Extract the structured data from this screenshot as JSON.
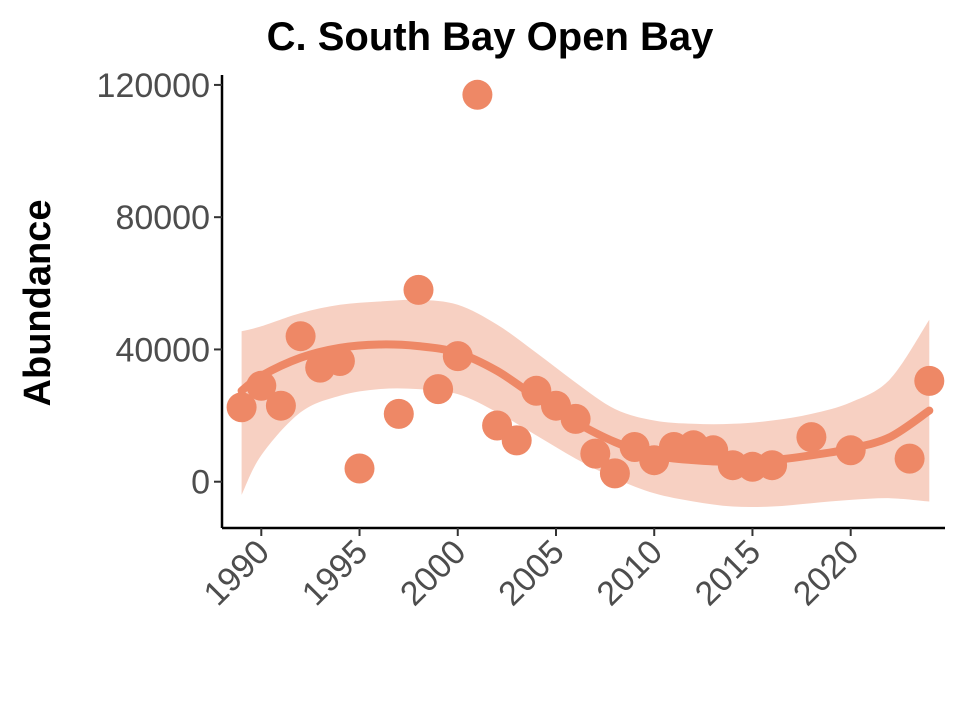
{
  "chart_data": {
    "type": "scatter",
    "title": "C. South Bay Open Bay",
    "xlabel": "",
    "ylabel": "Abundance",
    "xlim": [
      1988,
      2024.8
    ],
    "ylim": [
      -14000,
      123000
    ],
    "x_ticks": [
      1990,
      1995,
      2000,
      2005,
      2010,
      2015,
      2020
    ],
    "x_tick_labels": [
      "1990",
      "1995",
      "2000",
      "2005",
      "2010",
      "2015",
      "2020"
    ],
    "y_ticks": [
      0,
      40000,
      80000,
      120000
    ],
    "y_tick_labels": [
      "0",
      "40000",
      "80000",
      "120000"
    ],
    "grid": false,
    "colors": {
      "points": "#ee8866",
      "trend": "#ee8866",
      "band": "#f5c4b3"
    },
    "points": [
      {
        "x": 1989,
        "y": 22500
      },
      {
        "x": 1990,
        "y": 29000
      },
      {
        "x": 1991,
        "y": 23000
      },
      {
        "x": 1992,
        "y": 44000
      },
      {
        "x": 1993,
        "y": 34500
      },
      {
        "x": 1994,
        "y": 36500
      },
      {
        "x": 1995,
        "y": 4000
      },
      {
        "x": 1997,
        "y": 20500
      },
      {
        "x": 1998,
        "y": 58000
      },
      {
        "x": 1999,
        "y": 28000
      },
      {
        "x": 2000,
        "y": 38000
      },
      {
        "x": 2001,
        "y": 117000
      },
      {
        "x": 2002,
        "y": 17000
      },
      {
        "x": 2003,
        "y": 12500
      },
      {
        "x": 2004,
        "y": 27500
      },
      {
        "x": 2005,
        "y": 23000
      },
      {
        "x": 2006,
        "y": 19000
      },
      {
        "x": 2007,
        "y": 8500
      },
      {
        "x": 2008,
        "y": 2500
      },
      {
        "x": 2009,
        "y": 10500
      },
      {
        "x": 2010,
        "y": 6500
      },
      {
        "x": 2011,
        "y": 10500
      },
      {
        "x": 2012,
        "y": 11000
      },
      {
        "x": 2013,
        "y": 9500
      },
      {
        "x": 2014,
        "y": 5000
      },
      {
        "x": 2015,
        "y": 4500
      },
      {
        "x": 2016,
        "y": 5000
      },
      {
        "x": 2018,
        "y": 13500
      },
      {
        "x": 2020,
        "y": 9500
      },
      {
        "x": 2023,
        "y": 7000
      },
      {
        "x": 2024,
        "y": 30500
      }
    ],
    "trend": {
      "x": [
        1989,
        1990,
        1992,
        1994,
        1996,
        1998,
        2000,
        2002,
        2004,
        2006,
        2008,
        2010,
        2012,
        2014,
        2016,
        2018,
        2020,
        2022,
        2024
      ],
      "y": [
        27500,
        32000,
        37500,
        40500,
        41500,
        41000,
        39000,
        33500,
        25500,
        18000,
        12000,
        8000,
        6500,
        6000,
        6500,
        8000,
        10000,
        13500,
        21500
      ],
      "lower": [
        -4000,
        8000,
        21000,
        26000,
        28000,
        28000,
        26500,
        21000,
        14000,
        7000,
        1000,
        -3500,
        -6000,
        -7500,
        -7500,
        -6500,
        -5500,
        -5000,
        -6000
      ],
      "upper": [
        45500,
        47000,
        51000,
        53500,
        54500,
        55000,
        53500,
        47500,
        39000,
        30000,
        22000,
        18500,
        17500,
        17500,
        18500,
        20500,
        24000,
        31000,
        49000
      ]
    }
  }
}
